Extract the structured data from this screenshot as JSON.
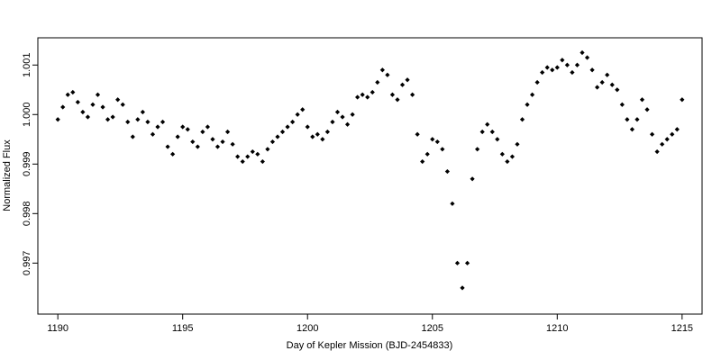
{
  "chart_data": {
    "type": "scatter",
    "title": "",
    "xlabel": "Day of Kepler Mission (BJD-2454833)",
    "ylabel": "Normalized Flux",
    "xlim": [
      1189.2,
      1215.8
    ],
    "ylim": [
      0.99597,
      1.00155
    ],
    "x_ticks": [
      1190,
      1195,
      1200,
      1205,
      1210,
      1215
    ],
    "y_ticks": [
      0.997,
      0.998,
      0.999,
      1.0,
      1.001
    ],
    "x_tick_labels": [
      "1190",
      "1195",
      "1200",
      "1205",
      "1210",
      "1215"
    ],
    "y_tick_labels": [
      "0.997",
      "0.998",
      "0.999",
      "1.000",
      "1.001"
    ],
    "grid": false,
    "legend": "none",
    "marker_color": "#000000",
    "series": [
      {
        "marker": "filled-diamond",
        "x": [
          1190.0,
          1190.2,
          1190.4,
          1190.6,
          1190.8,
          1191.0,
          1191.2,
          1191.4,
          1191.6,
          1191.8,
          1192.0,
          1192.2,
          1192.4,
          1192.6,
          1192.8,
          1193.0,
          1193.2,
          1193.4,
          1193.6,
          1193.8,
          1194.0,
          1194.2,
          1194.4,
          1194.6,
          1194.8,
          1195.0,
          1195.2,
          1195.4,
          1195.6,
          1195.8,
          1196.0,
          1196.2,
          1196.4,
          1196.6,
          1196.8,
          1197.0,
          1197.2,
          1197.4,
          1197.6,
          1197.8,
          1198.0,
          1198.2,
          1198.4,
          1198.6,
          1198.8,
          1199.0,
          1199.2,
          1199.4,
          1199.6,
          1199.8,
          1200.0,
          1200.2,
          1200.4,
          1200.6,
          1200.8,
          1201.0,
          1201.2,
          1201.4,
          1201.6,
          1201.8,
          1202.0,
          1202.2,
          1202.4,
          1202.6,
          1202.8,
          1203.0,
          1203.2,
          1203.4,
          1203.6,
          1203.8,
          1204.0,
          1204.2,
          1204.4,
          1204.6,
          1204.8,
          1205.0,
          1205.2,
          1205.4,
          1205.6,
          1205.8,
          1206.0,
          1206.2,
          1206.4,
          1206.6,
          1206.8,
          1207.0,
          1207.2,
          1207.4,
          1207.6,
          1207.8,
          1208.0,
          1208.2,
          1208.4,
          1208.6,
          1208.8,
          1209.0,
          1209.2,
          1209.4,
          1209.6,
          1209.8,
          1210.0,
          1210.2,
          1210.4,
          1210.6,
          1210.8,
          1211.0,
          1211.2,
          1211.4,
          1211.6,
          1211.8,
          1212.0,
          1212.2,
          1212.4,
          1212.6,
          1212.8,
          1213.0,
          1213.2,
          1213.4,
          1213.6,
          1213.8,
          1214.0,
          1214.2,
          1214.4,
          1214.6,
          1214.8,
          1215.0
        ],
        "y": [
          0.9999,
          1.00015,
          1.0004,
          1.00045,
          1.00025,
          1.00005,
          0.99995,
          1.0002,
          1.0004,
          1.00015,
          0.9999,
          0.99995,
          1.0003,
          1.0002,
          0.99985,
          0.99955,
          0.9999,
          1.00005,
          0.99985,
          0.9996,
          0.99975,
          0.99985,
          0.99935,
          0.9992,
          0.99955,
          0.99975,
          0.9997,
          0.99945,
          0.99935,
          0.99965,
          0.99975,
          0.9995,
          0.99935,
          0.99945,
          0.99965,
          0.9994,
          0.99915,
          0.99905,
          0.99915,
          0.99925,
          0.9992,
          0.99905,
          0.9993,
          0.99945,
          0.99955,
          0.99965,
          0.99975,
          0.99985,
          1.0,
          1.0001,
          0.99975,
          0.99955,
          0.9996,
          0.9995,
          0.99965,
          0.99985,
          1.00005,
          0.99995,
          0.9998,
          1.0,
          1.00035,
          1.0004,
          1.00035,
          1.00045,
          1.00065,
          1.0009,
          1.0008,
          1.0004,
          1.0003,
          1.0006,
          1.0007,
          1.0004,
          0.9996,
          0.99905,
          0.9992,
          0.9995,
          0.99945,
          0.9993,
          0.99885,
          0.9982,
          0.997,
          0.9965,
          0.997,
          0.9987,
          0.9993,
          0.99965,
          0.9998,
          0.99965,
          0.9995,
          0.9992,
          0.99905,
          0.99915,
          0.9994,
          0.9999,
          1.0002,
          1.0004,
          1.00065,
          1.00085,
          1.00095,
          1.0009,
          1.00095,
          1.0011,
          1.001,
          1.00085,
          1.001,
          1.00125,
          1.00115,
          1.0009,
          1.00055,
          1.00065,
          1.0008,
          1.0006,
          1.0005,
          1.0002,
          0.9999,
          0.9997,
          0.9999,
          1.0003,
          1.0001,
          0.9996,
          0.99925,
          0.9994,
          0.9995,
          0.9996,
          0.9997,
          1.0003
        ]
      }
    ]
  }
}
